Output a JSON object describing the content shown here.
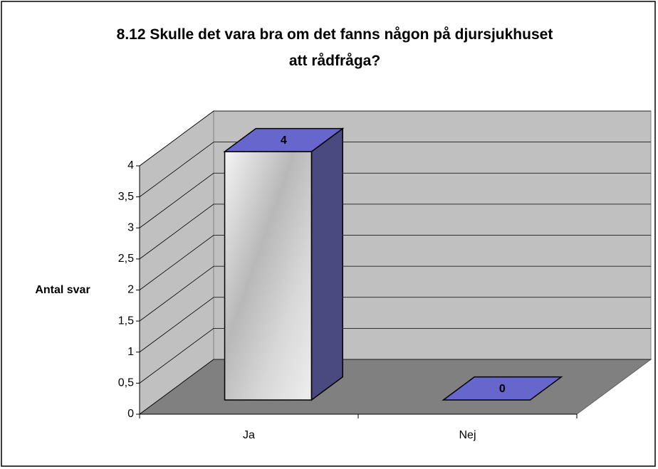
{
  "chart_data": {
    "type": "bar3d",
    "title": "8.12 Skulle det vara bra om det fanns någon på djursjukhuset att rådfråga?",
    "y_label": "Antal svar",
    "categories": [
      "Ja",
      "Nej"
    ],
    "values": [
      4,
      0
    ],
    "color": "#6666cc",
    "ylim": [
      0,
      4
    ],
    "yticks": [
      0,
      {
        "value": 0.5,
        "label": "0,5"
      },
      1,
      {
        "value": 1.5,
        "label": "1,5"
      },
      2,
      {
        "value": 2.5,
        "label": "2,5"
      },
      3,
      {
        "value": 3.5,
        "label": "3,5"
      },
      4
    ],
    "grid": true
  }
}
